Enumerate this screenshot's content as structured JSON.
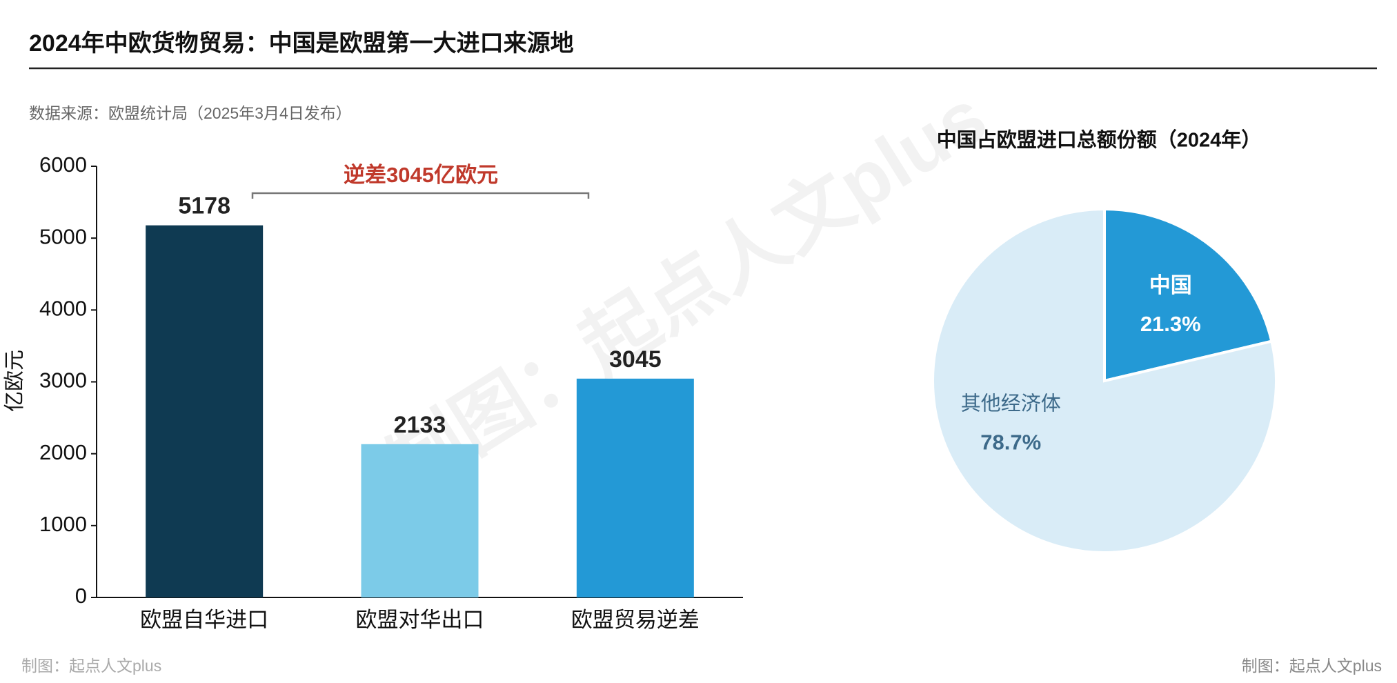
{
  "title": "2024年中欧货物贸易：中国是欧盟第一大进口来源地",
  "source": "数据来源：欧盟统计局（2025年3月4日发布）",
  "watermark": "制图：起点人文plus",
  "credit_left": "制图：起点人文plus",
  "credit_right": "制图：起点人文plus",
  "chart_data": [
    {
      "type": "bar",
      "y_label": "亿欧元",
      "annotation": "逆差3045亿欧元",
      "categories": [
        "欧盟自华进口",
        "欧盟对华出口",
        "欧盟贸易逆差"
      ],
      "values": [
        5178,
        2133,
        3045
      ],
      "colors": [
        "#0f3a52",
        "#7ccbe8",
        "#2399d6"
      ],
      "ylim": [
        0,
        6000
      ],
      "yticks": [
        0,
        1000,
        2000,
        3000,
        4000,
        5000,
        6000
      ]
    },
    {
      "type": "pie",
      "title": "中国占欧盟进口总额份额（2024年）",
      "categories": [
        "中国",
        "其他经济体"
      ],
      "values": [
        21.3,
        78.7
      ],
      "value_labels": [
        "21.3%",
        "78.7%"
      ],
      "colors": [
        "#2399d6",
        "#d9ecf7"
      ]
    }
  ]
}
